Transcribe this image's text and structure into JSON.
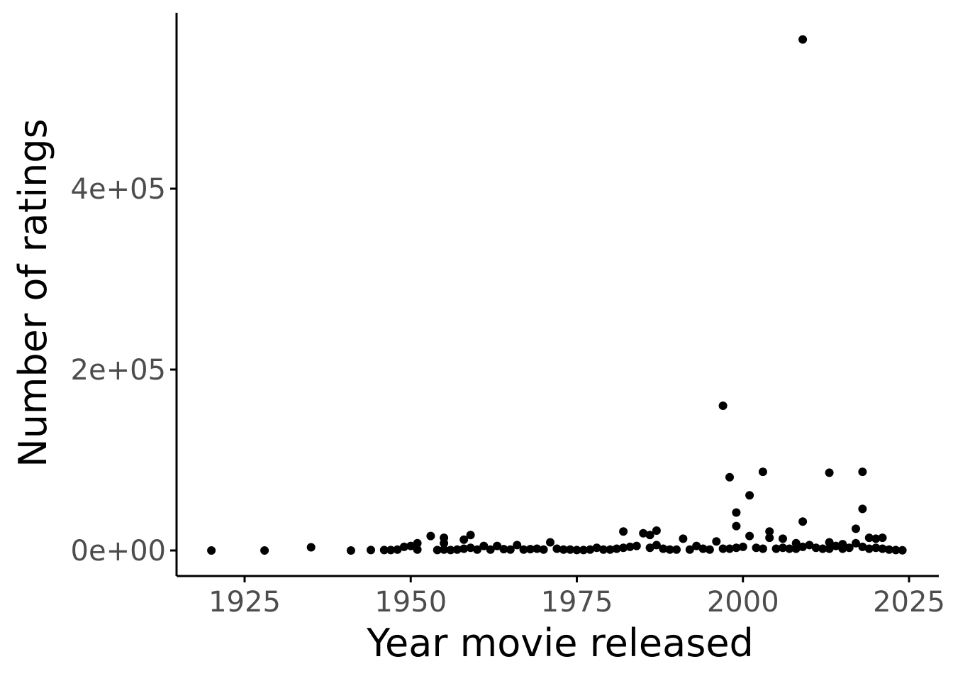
{
  "chart_data": {
    "type": "scatter",
    "title": "",
    "xlabel": "Year movie released",
    "ylabel": "Number of ratings",
    "xlim": [
      1914.8,
      1928.0
    ],
    "x_ticks": [
      1925,
      1950,
      1975,
      2000,
      2025
    ],
    "x_tick_labels": [
      "1925",
      "1950",
      "1975",
      "2000",
      "2025"
    ],
    "ylim": [
      -28000,
      594000
    ],
    "y_ticks": [
      0,
      200000,
      400000
    ],
    "y_tick_labels": [
      "0e+00",
      "2e+05",
      "4e+05"
    ],
    "grid": false,
    "legend": "none",
    "point_color": "#000000",
    "points": [
      [
        1920,
        0
      ],
      [
        1928,
        0
      ],
      [
        1935,
        3500
      ],
      [
        1941,
        0
      ],
      [
        1944,
        500
      ],
      [
        1946,
        500
      ],
      [
        1947,
        500
      ],
      [
        1948,
        1000
      ],
      [
        1949,
        4000
      ],
      [
        1950,
        5000
      ],
      [
        1951,
        8000
      ],
      [
        1951,
        1000
      ],
      [
        1953,
        16000
      ],
      [
        1954,
        500
      ],
      [
        1955,
        14000
      ],
      [
        1955,
        8000
      ],
      [
        1955,
        1000
      ],
      [
        1956,
        500
      ],
      [
        1957,
        1000
      ],
      [
        1958,
        12000
      ],
      [
        1958,
        2000
      ],
      [
        1959,
        17000
      ],
      [
        1959,
        3000
      ],
      [
        1960,
        1000
      ],
      [
        1961,
        5000
      ],
      [
        1962,
        1000
      ],
      [
        1963,
        5000
      ],
      [
        1964,
        1500
      ],
      [
        1965,
        1000
      ],
      [
        1966,
        6000
      ],
      [
        1967,
        1000
      ],
      [
        1968,
        1500
      ],
      [
        1969,
        2000
      ],
      [
        1970,
        1000
      ],
      [
        1971,
        9000
      ],
      [
        1972,
        2000
      ],
      [
        1973,
        1000
      ],
      [
        1974,
        1000
      ],
      [
        1975,
        500
      ],
      [
        1976,
        500
      ],
      [
        1977,
        1000
      ],
      [
        1978,
        3000
      ],
      [
        1979,
        1000
      ],
      [
        1980,
        1000
      ],
      [
        1981,
        2000
      ],
      [
        1982,
        21000
      ],
      [
        1982,
        3000
      ],
      [
        1983,
        4000
      ],
      [
        1984,
        5000
      ],
      [
        1985,
        19000
      ],
      [
        1986,
        17000
      ],
      [
        1986,
        3000
      ],
      [
        1987,
        22000
      ],
      [
        1987,
        6000
      ],
      [
        1988,
        2000
      ],
      [
        1989,
        1000
      ],
      [
        1990,
        1000
      ],
      [
        1991,
        13000
      ],
      [
        1992,
        1000
      ],
      [
        1993,
        5000
      ],
      [
        1994,
        2000
      ],
      [
        1995,
        1000
      ],
      [
        1996,
        10000
      ],
      [
        1997,
        160000
      ],
      [
        1997,
        2000
      ],
      [
        1998,
        81000
      ],
      [
        1998,
        2000
      ],
      [
        1999,
        42000
      ],
      [
        1999,
        27000
      ],
      [
        1999,
        3000
      ],
      [
        2000,
        4000
      ],
      [
        2001,
        61000
      ],
      [
        2001,
        16000
      ],
      [
        2002,
        3000
      ],
      [
        2003,
        87000
      ],
      [
        2003,
        2000
      ],
      [
        2004,
        21000
      ],
      [
        2004,
        14000
      ],
      [
        2005,
        2000
      ],
      [
        2006,
        13000
      ],
      [
        2006,
        3000
      ],
      [
        2007,
        2000
      ],
      [
        2008,
        8000
      ],
      [
        2008,
        2000
      ],
      [
        2009,
        565000
      ],
      [
        2009,
        32000
      ],
      [
        2009,
        4000
      ],
      [
        2010,
        6000
      ],
      [
        2011,
        3000
      ],
      [
        2012,
        2000
      ],
      [
        2013,
        86000
      ],
      [
        2013,
        9000
      ],
      [
        2013,
        2000
      ],
      [
        2014,
        5000
      ],
      [
        2015,
        7000
      ],
      [
        2015,
        2000
      ],
      [
        2016,
        3000
      ],
      [
        2017,
        24000
      ],
      [
        2017,
        8000
      ],
      [
        2018,
        87000
      ],
      [
        2018,
        46000
      ],
      [
        2018,
        4000
      ],
      [
        2019,
        14000
      ],
      [
        2019,
        2000
      ],
      [
        2020,
        13000
      ],
      [
        2020,
        3000
      ],
      [
        2021,
        14000
      ],
      [
        2021,
        2000
      ],
      [
        2022,
        1000
      ],
      [
        2023,
        500
      ],
      [
        2024,
        200
      ]
    ]
  }
}
